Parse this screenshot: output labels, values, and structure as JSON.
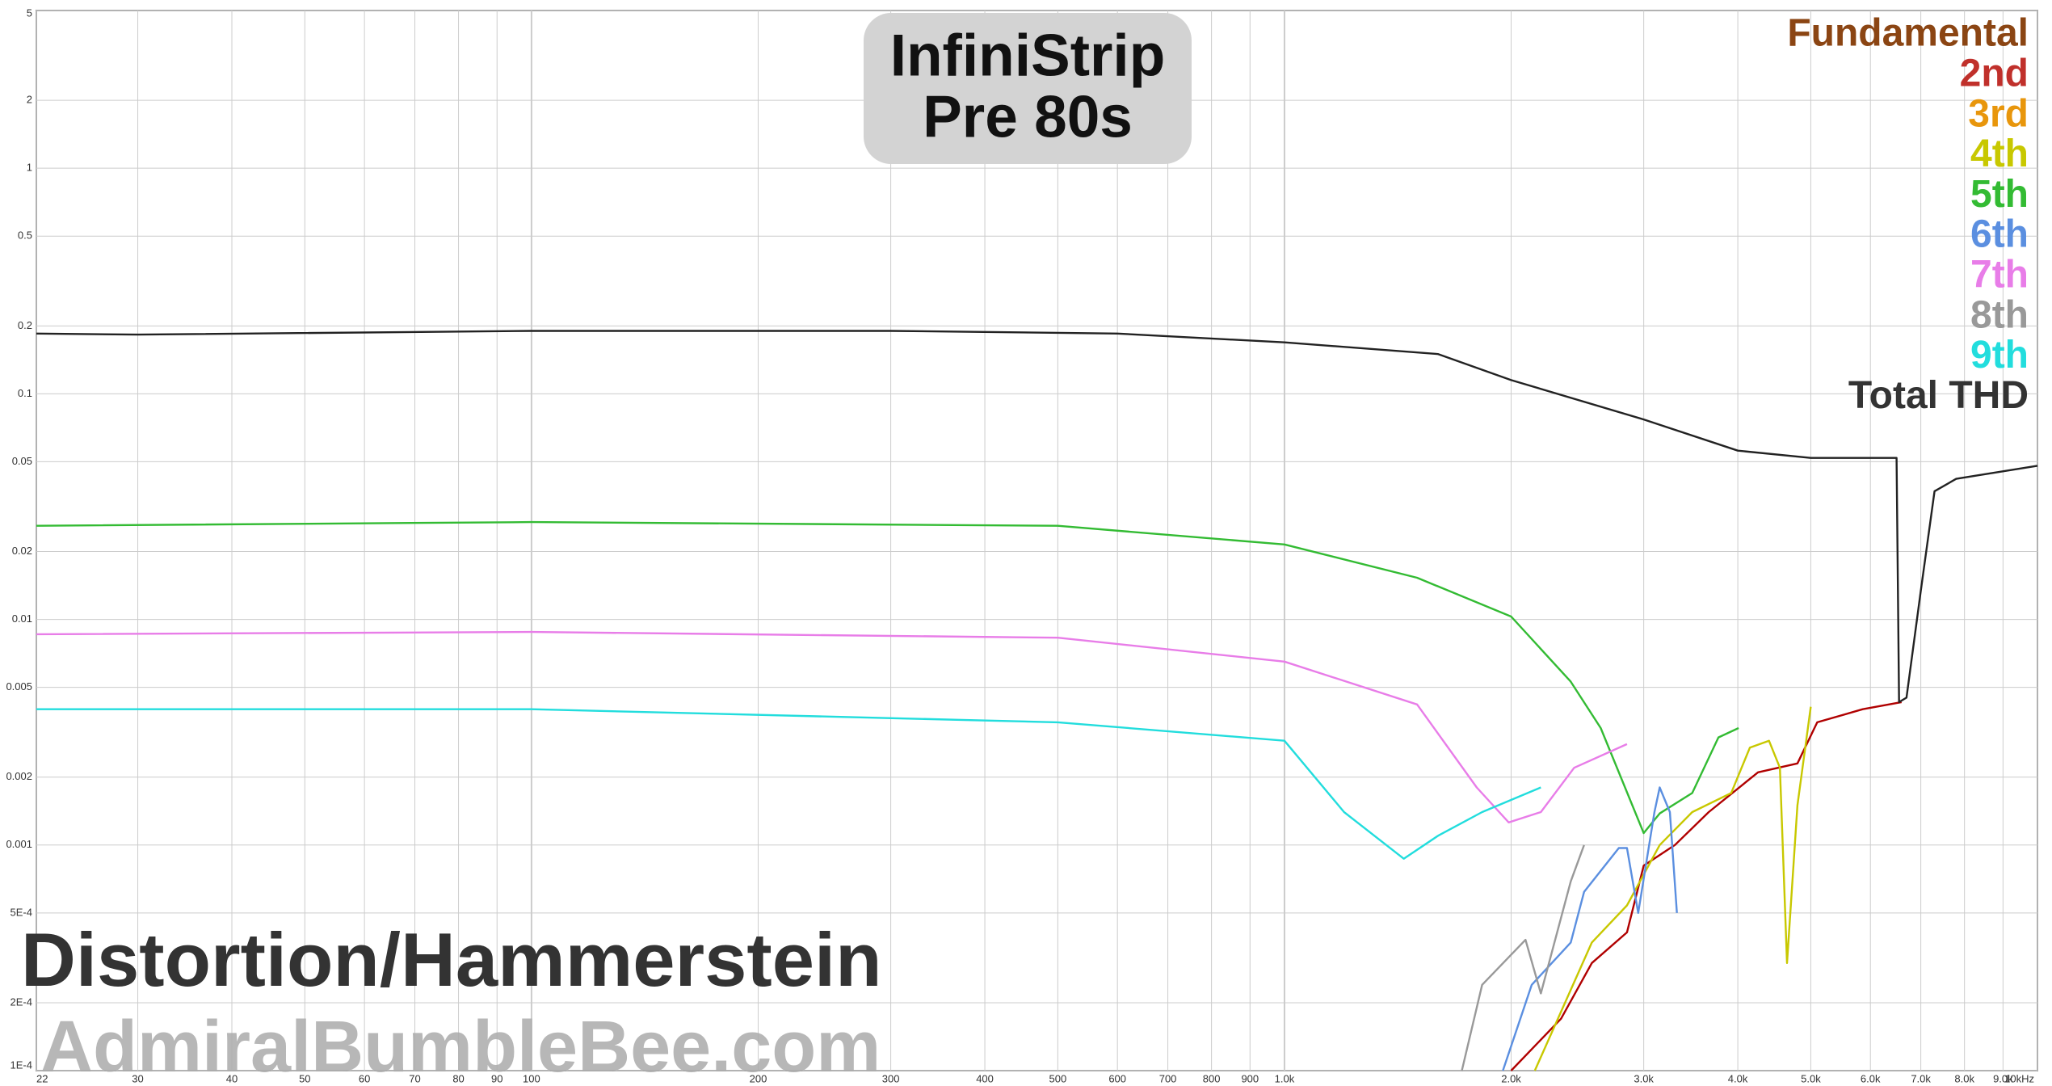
{
  "chart_data": {
    "type": "line",
    "title": [
      "InfiniStrip",
      "Pre 80s"
    ],
    "annotations": [
      "Distortion/Hammerstein",
      "AdmiralBumbleBee.com"
    ],
    "xscale": "log",
    "yscale": "log",
    "grid": true,
    "legend": "top-right",
    "xlim": [
      22,
      10000
    ],
    "ylim": [
      0.0001,
      5
    ],
    "xticks": [
      22,
      30,
      40,
      50,
      60,
      70,
      80,
      90,
      100,
      200,
      300,
      400,
      500,
      600,
      700,
      800,
      900,
      {
        "value": 1000,
        "label": "1.0k"
      },
      {
        "value": 2000,
        "label": "2.0k"
      },
      {
        "value": 3000,
        "label": "3.0k"
      },
      {
        "value": 4000,
        "label": "4.0k"
      },
      {
        "value": 5000,
        "label": "5.0k"
      },
      {
        "value": 6000,
        "label": "6.0k"
      },
      {
        "value": 7000,
        "label": "7.0k"
      },
      {
        "value": 8000,
        "label": "8.0k"
      },
      {
        "value": 9000,
        "label": "9.0k"
      },
      {
        "value": 10000,
        "label": "10kHz"
      }
    ],
    "yticks": [
      5,
      2,
      1,
      0.5,
      0.2,
      0.1,
      0.05,
      0.02,
      0.01,
      0.005,
      0.002,
      0.001,
      {
        "value": 0.0005,
        "label": "5E-4"
      },
      {
        "value": 0.0002,
        "label": "2E-4"
      },
      {
        "value": 0.0001,
        "label": "1E-4"
      }
    ],
    "series": [
      {
        "name": "Fundamental",
        "color": "#8b4513",
        "x": [],
        "values": []
      },
      {
        "name": "2nd",
        "color": "#c0302b",
        "line_color": "#b00000",
        "x": [
          2000,
          2330,
          2560,
          2850,
          3000,
          3300,
          3660,
          4255,
          4800,
          5100,
          5860,
          6600
        ],
        "values": [
          0.0001,
          0.00017,
          0.0003,
          0.00041,
          0.00081,
          0.001,
          0.0014,
          0.0021,
          0.0023,
          0.0035,
          0.004,
          0.0043
        ]
      },
      {
        "name": "3rd",
        "color": "#e8960c",
        "x": [],
        "values": []
      },
      {
        "name": "4th",
        "color": "#c8c800",
        "x": [
          2150,
          2560,
          2850,
          3150,
          3480,
          3920,
          4150,
          4400,
          4550,
          4650,
          4800,
          5000
        ],
        "values": [
          0.0001,
          0.00037,
          0.00054,
          0.001,
          0.0014,
          0.0017,
          0.0027,
          0.0029,
          0.0022,
          0.0003,
          0.0015,
          0.0041
        ]
      },
      {
        "name": "5th",
        "color": "#33bb33",
        "x": [
          22,
          100,
          500,
          1000,
          1500,
          2000,
          2400,
          2630,
          3000,
          3150,
          3480,
          3770,
          4010
        ],
        "values": [
          0.026,
          0.027,
          0.026,
          0.0215,
          0.0153,
          0.0103,
          0.0053,
          0.0033,
          0.00113,
          0.00138,
          0.0017,
          0.003,
          0.0033
        ]
      },
      {
        "name": "6th",
        "color": "#5b8fe0",
        "x": [
          1950,
          2130,
          2400,
          2500,
          2780,
          2850,
          2950,
          3100,
          3150,
          3250,
          3320
        ],
        "values": [
          0.0001,
          0.00024,
          0.00037,
          0.00062,
          0.00097,
          0.00097,
          0.0005,
          0.0014,
          0.0018,
          0.0014,
          0.0005
        ]
      },
      {
        "name": "7th",
        "color": "#e87de8",
        "x": [
          22,
          100,
          500,
          1000,
          1500,
          1800,
          1985,
          2190,
          2425,
          2850
        ],
        "values": [
          0.0086,
          0.0088,
          0.0083,
          0.0065,
          0.0042,
          0.0018,
          0.00126,
          0.0014,
          0.0022,
          0.0028
        ]
      },
      {
        "name": "8th",
        "color": "#999999",
        "x": [
          1720,
          1830,
          2090,
          2190,
          2400,
          2500
        ],
        "values": [
          0.0001,
          0.00024,
          0.00038,
          0.00022,
          0.00069,
          0.001
        ]
      },
      {
        "name": "9th",
        "color": "#22dddd",
        "x": [
          22,
          100,
          500,
          1000,
          1200,
          1440,
          1600,
          1830,
          2190
        ],
        "values": [
          0.004,
          0.004,
          0.0035,
          0.0029,
          0.0014,
          0.00087,
          0.0011,
          0.0014,
          0.0018
        ]
      },
      {
        "name": "Total THD",
        "color": "#333333",
        "line_color": "#222222",
        "x": [
          22,
          30,
          100,
          300,
          600,
          1000,
          1600,
          2000,
          3000,
          4000,
          5000,
          6500,
          6550,
          6700,
          7000,
          7300,
          7800,
          10000
        ],
        "values": [
          0.185,
          0.183,
          0.19,
          0.19,
          0.185,
          0.169,
          0.15,
          0.115,
          0.077,
          0.056,
          0.052,
          0.052,
          0.0043,
          0.0045,
          0.0134,
          0.037,
          0.042,
          0.048
        ]
      }
    ]
  }
}
